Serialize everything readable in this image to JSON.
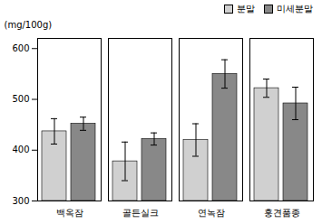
{
  "chart_data": {
    "type": "bar",
    "ylabel": "(mg/100g)",
    "categories": [
      "백옥잠",
      "골든실크",
      "연녹잠",
      "홍견품종"
    ],
    "series": [
      {
        "name": "분말",
        "color": "#d0d0d0",
        "values": [
          437,
          378,
          420,
          522
        ],
        "errors": [
          25,
          38,
          32,
          18
        ]
      },
      {
        "name": "미세분말",
        "color": "#888888",
        "values": [
          452,
          422,
          550,
          492
        ],
        "errors": [
          13,
          12,
          28,
          32
        ]
      }
    ],
    "ylim": [
      300,
      620
    ],
    "yticks": [
      300,
      400,
      500,
      600
    ],
    "grid": false,
    "legend": "top"
  }
}
